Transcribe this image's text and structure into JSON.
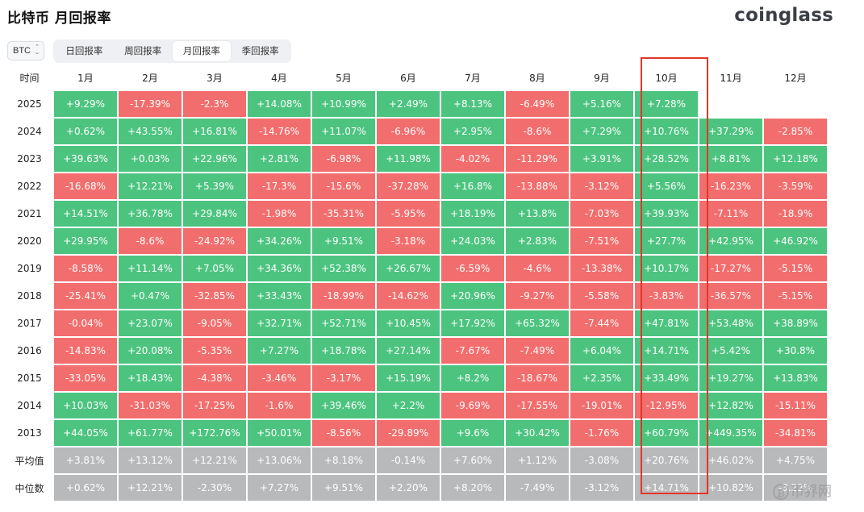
{
  "header": {
    "title": "比特币 月回报率",
    "brand": "coinglass"
  },
  "coin_select": {
    "value": "BTC"
  },
  "tabs": [
    {
      "label": "日回报率",
      "active": false
    },
    {
      "label": "周回报率",
      "active": false
    },
    {
      "label": "月回报率",
      "active": true
    },
    {
      "label": "季回报率",
      "active": false
    }
  ],
  "table": {
    "corner": "时间",
    "months": [
      "1月",
      "2月",
      "3月",
      "4月",
      "5月",
      "6月",
      "7月",
      "8月",
      "9月",
      "10月",
      "11月",
      "12月"
    ],
    "rows": [
      {
        "year": "2025",
        "values": [
          "+9.29%",
          "-17.39%",
          "-2.3%",
          "+14.08%",
          "+10.99%",
          "+2.49%",
          "+8.13%",
          "-6.49%",
          "+5.16%",
          "+7.28%",
          "",
          ""
        ]
      },
      {
        "year": "2024",
        "values": [
          "+0.62%",
          "+43.55%",
          "+16.81%",
          "-14.76%",
          "+11.07%",
          "-6.96%",
          "+2.95%",
          "-8.6%",
          "+7.29%",
          "+10.76%",
          "+37.29%",
          "-2.85%"
        ]
      },
      {
        "year": "2023",
        "values": [
          "+39.63%",
          "+0.03%",
          "+22.96%",
          "+2.81%",
          "-6.98%",
          "+11.98%",
          "-4.02%",
          "-11.29%",
          "+3.91%",
          "+28.52%",
          "+8.81%",
          "+12.18%"
        ]
      },
      {
        "year": "2022",
        "values": [
          "-16.68%",
          "+12.21%",
          "+5.39%",
          "-17.3%",
          "-15.6%",
          "-37.28%",
          "+16.8%",
          "-13.88%",
          "-3.12%",
          "+5.56%",
          "-16.23%",
          "-3.59%"
        ]
      },
      {
        "year": "2021",
        "values": [
          "+14.51%",
          "+36.78%",
          "+29.84%",
          "-1.98%",
          "-35.31%",
          "-5.95%",
          "+18.19%",
          "+13.8%",
          "-7.03%",
          "+39.93%",
          "-7.11%",
          "-18.9%"
        ]
      },
      {
        "year": "2020",
        "values": [
          "+29.95%",
          "-8.6%",
          "-24.92%",
          "+34.26%",
          "+9.51%",
          "-3.18%",
          "+24.03%",
          "+2.83%",
          "-7.51%",
          "+27.7%",
          "+42.95%",
          "+46.92%"
        ]
      },
      {
        "year": "2019",
        "values": [
          "-8.58%",
          "+11.14%",
          "+7.05%",
          "+34.36%",
          "+52.38%",
          "+26.67%",
          "-6.59%",
          "-4.6%",
          "-13.38%",
          "+10.17%",
          "-17.27%",
          "-5.15%"
        ]
      },
      {
        "year": "2018",
        "values": [
          "-25.41%",
          "+0.47%",
          "-32.85%",
          "+33.43%",
          "-18.99%",
          "-14.62%",
          "+20.96%",
          "-9.27%",
          "-5.58%",
          "-3.83%",
          "-36.57%",
          "-5.15%"
        ]
      },
      {
        "year": "2017",
        "values": [
          "-0.04%",
          "+23.07%",
          "-9.05%",
          "+32.71%",
          "+52.71%",
          "+10.45%",
          "+17.92%",
          "+65.32%",
          "-7.44%",
          "+47.81%",
          "+53.48%",
          "+38.89%"
        ]
      },
      {
        "year": "2016",
        "values": [
          "-14.83%",
          "+20.08%",
          "-5.35%",
          "+7.27%",
          "+18.78%",
          "+27.14%",
          "-7.67%",
          "-7.49%",
          "+6.04%",
          "+14.71%",
          "+5.42%",
          "+30.8%"
        ]
      },
      {
        "year": "2015",
        "values": [
          "-33.05%",
          "+18.43%",
          "-4.38%",
          "-3.46%",
          "-3.17%",
          "+15.19%",
          "+8.2%",
          "-18.67%",
          "+2.35%",
          "+33.49%",
          "+19.27%",
          "+13.83%"
        ]
      },
      {
        "year": "2014",
        "values": [
          "+10.03%",
          "-31.03%",
          "-17.25%",
          "-1.6%",
          "+39.46%",
          "+2.2%",
          "-9.69%",
          "-17.55%",
          "-19.01%",
          "-12.95%",
          "+12.82%",
          "-15.11%"
        ]
      },
      {
        "year": "2013",
        "values": [
          "+44.05%",
          "+61.77%",
          "+172.76%",
          "+50.01%",
          "-8.56%",
          "-29.89%",
          "+9.6%",
          "+30.42%",
          "-1.76%",
          "+60.79%",
          "+449.35%",
          "-34.81%"
        ]
      }
    ],
    "stats": [
      {
        "label": "平均值",
        "values": [
          "+3.81%",
          "+13.12%",
          "+12.21%",
          "+13.06%",
          "+8.18%",
          "-0.14%",
          "+7.60%",
          "+1.12%",
          "-3.08%",
          "+20.76%",
          "+46.02%",
          "+4.75%"
        ]
      },
      {
        "label": "中位数",
        "values": [
          "+0.62%",
          "+12.21%",
          "-2.30%",
          "+7.27%",
          "+9.51%",
          "+2.20%",
          "+8.20%",
          "-7.49%",
          "-3.12%",
          "+14.71%",
          "+10.82%",
          "-3.22%"
        ]
      }
    ]
  },
  "colors": {
    "positive": "#4cc47f",
    "negative": "#f26d6d",
    "stat": "#b8b9bb",
    "highlight": "#e2362b"
  },
  "highlighted_month": "10月",
  "watermark": {
    "text": "币界网",
    "icon": "coin-icon"
  }
}
